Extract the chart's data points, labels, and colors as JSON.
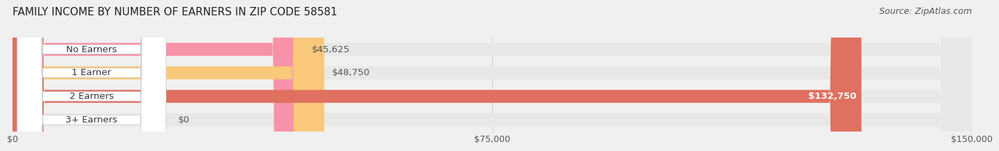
{
  "title": "FAMILY INCOME BY NUMBER OF EARNERS IN ZIP CODE 58581",
  "source": "Source: ZipAtlas.com",
  "categories": [
    "No Earners",
    "1 Earner",
    "2 Earners",
    "3+ Earners"
  ],
  "values": [
    45625,
    48750,
    132750,
    0
  ],
  "bar_colors": [
    "#f892a8",
    "#f9c87a",
    "#e07060",
    "#a8c4e0"
  ],
  "label_colors": [
    "#000000",
    "#000000",
    "#ffffff",
    "#000000"
  ],
  "value_labels": [
    "$45,625",
    "$48,750",
    "$132,750",
    "$0"
  ],
  "x_max": 150000,
  "x_ticks": [
    0,
    75000,
    150000
  ],
  "x_tick_labels": [
    "$0",
    "$75,000",
    "$150,000"
  ],
  "background_color": "#f0f0f0",
  "bar_bg_color": "#e8e8e8",
  "title_fontsize": 11,
  "source_fontsize": 9,
  "bar_height": 0.55,
  "bar_label_fontsize": 9.5
}
